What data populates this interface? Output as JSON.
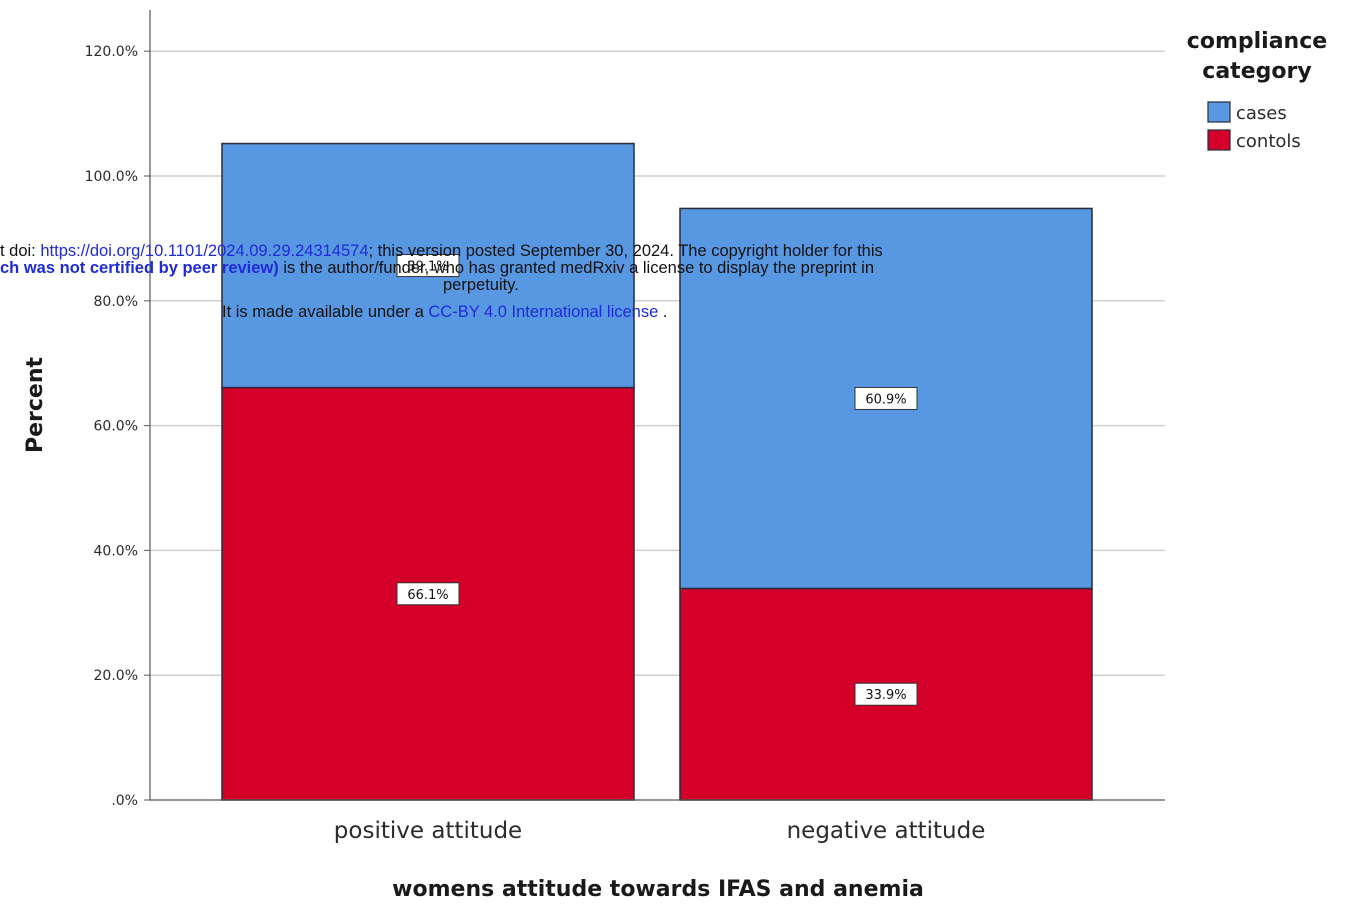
{
  "chart_data": {
    "type": "bar",
    "stacked": true,
    "categories": [
      "positive attitude",
      "negative attitude"
    ],
    "series": [
      {
        "name": "contols",
        "color": "#d4002a",
        "values": [
          66.1,
          33.9
        ],
        "labels": [
          "66.1%",
          "33.9%"
        ]
      },
      {
        "name": "cases",
        "color": "#5898e3",
        "values": [
          39.1,
          60.9
        ],
        "labels": [
          "39.1%",
          "60.9%"
        ]
      }
    ],
    "xlabel": "womens attitude towards IFAS and anemia",
    "ylabel": "Percent",
    "ylim": [
      0,
      120
    ],
    "yticks": [
      0,
      20,
      40,
      60,
      80,
      100,
      120
    ],
    "ytick_labels": [
      ".0%",
      "20.0%",
      "40.0%",
      "60.0%",
      "80.0%",
      "100.0%",
      "120.0%"
    ],
    "grid": true,
    "legend": {
      "title_lines": [
        "compliance",
        "category"
      ],
      "placement": "top-right",
      "order": [
        "cases",
        "contols"
      ]
    }
  },
  "watermark": {
    "line1_a": "t doi: ",
    "line1_link": "https://doi.org/10.1101/2024.09.29.24314574",
    "line1_b": "; this version posted September 30, 2024. The copyright holder for this",
    "line2_bold": "ch was not certified by peer review)",
    "line2_b": " is the author/funder, who has granted medRxiv a license to display the preprint in",
    "line3": "perpetuity.",
    "line4_a": "It is made available under a ",
    "line4_link": "CC-BY 4.0 International license",
    "line4_b": " ."
  }
}
